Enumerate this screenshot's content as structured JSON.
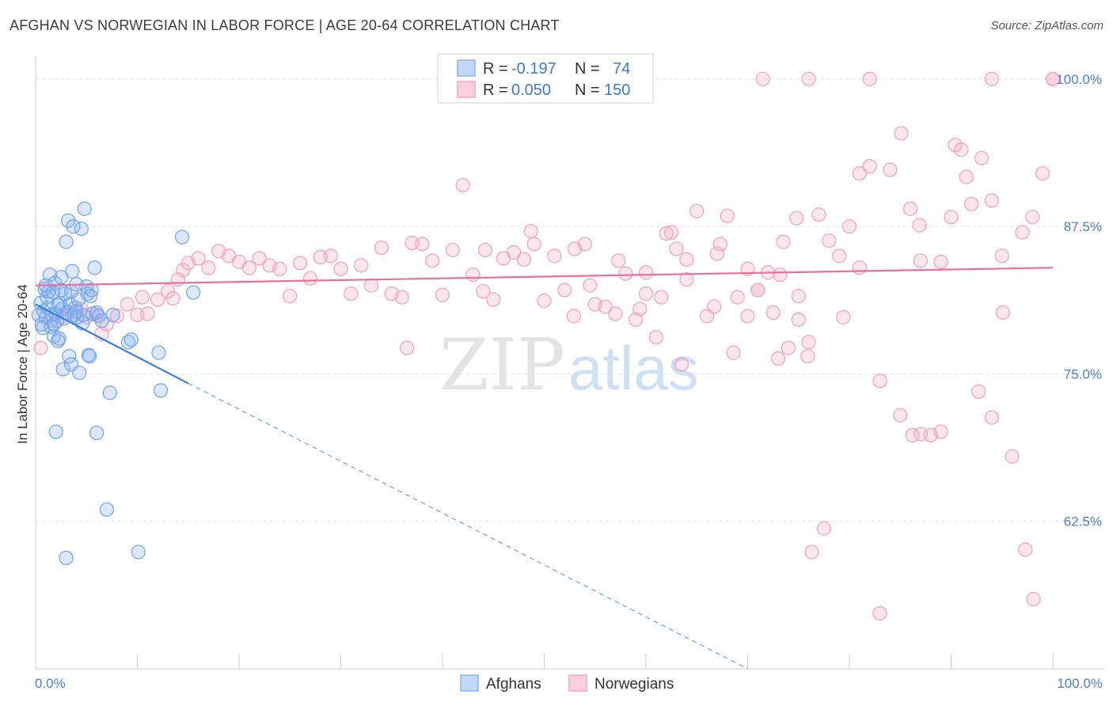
{
  "header": {
    "title": "AFGHAN VS NORWEGIAN IN LABOR FORCE | AGE 20-64 CORRELATION CHART",
    "source": "Source: ZipAtlas.com"
  },
  "watermark": {
    "zip": "ZIP",
    "atlas": "atlas"
  },
  "legend": {
    "rows": [
      {
        "r_label": "R = ",
        "r_value": "-0.197",
        "n_label": "N = ",
        "n_value": "74",
        "color": "#8ab4f0"
      },
      {
        "r_label": "R = ",
        "r_value": "0.050",
        "n_label": "N = ",
        "n_value": "150",
        "color": "#f4a6c0"
      }
    ]
  },
  "bottom_legend": [
    {
      "label": "Afghans",
      "color": "#8ab4f0"
    },
    {
      "label": "Norwegians",
      "color": "#f4a6c0"
    }
  ],
  "chart_data": {
    "type": "scatter",
    "title": "AFGHAN VS NORWEGIAN IN LABOR FORCE | AGE 20-64 CORRELATION CHART",
    "xlabel": "",
    "ylabel": "In Labor Force | Age 20-64",
    "xlim": [
      0,
      100
    ],
    "ylim": [
      50,
      102
    ],
    "x_tick_labels": [
      "0.0%",
      "100.0%"
    ],
    "y_ticks": [
      62.5,
      75.0,
      87.5,
      100.0
    ],
    "y_tick_labels": [
      "62.5%",
      "75.0%",
      "87.5%",
      "100.0%"
    ],
    "series": [
      {
        "name": "Afghans",
        "color": "#6fa3ea",
        "trend": {
          "x_start": 0,
          "y_start": 80.9,
          "x_end": 15,
          "y_end": 74.2,
          "dash_end_x": 70,
          "dash_end_y": 50
        },
        "points": [
          [
            0.3,
            80.0
          ],
          [
            0.5,
            81.0
          ],
          [
            0.6,
            79.2
          ],
          [
            0.8,
            80.3
          ],
          [
            0.9,
            82.2
          ],
          [
            1.0,
            79.8
          ],
          [
            1.1,
            81.5
          ],
          [
            1.2,
            80.6
          ],
          [
            1.3,
            82.0
          ],
          [
            1.4,
            83.4
          ],
          [
            1.5,
            79.0
          ],
          [
            1.6,
            80.0
          ],
          [
            1.7,
            81.9
          ],
          [
            1.8,
            78.2
          ],
          [
            1.9,
            82.7
          ],
          [
            2.0,
            80.1
          ],
          [
            2.1,
            79.5
          ],
          [
            2.2,
            80.8
          ],
          [
            2.3,
            78.0
          ],
          [
            2.4,
            81.0
          ],
          [
            2.5,
            82.1
          ],
          [
            2.6,
            80.5
          ],
          [
            2.7,
            75.4
          ],
          [
            2.8,
            79.7
          ],
          [
            2.9,
            81.8
          ],
          [
            3.0,
            86.2
          ],
          [
            3.1,
            80.2
          ],
          [
            3.2,
            88.0
          ],
          [
            3.3,
            76.5
          ],
          [
            3.4,
            80.9
          ],
          [
            3.5,
            75.8
          ],
          [
            3.6,
            83.7
          ],
          [
            3.7,
            87.5
          ],
          [
            3.8,
            80.0
          ],
          [
            3.9,
            80.6
          ],
          [
            4.0,
            80.3
          ],
          [
            4.1,
            79.8
          ],
          [
            4.2,
            81.3
          ],
          [
            4.3,
            75.1
          ],
          [
            4.5,
            87.3
          ],
          [
            4.6,
            79.3
          ],
          [
            4.7,
            80.0
          ],
          [
            4.8,
            89.0
          ],
          [
            5.0,
            82.4
          ],
          [
            5.1,
            81.8
          ],
          [
            5.2,
            76.6
          ],
          [
            5.3,
            76.5
          ],
          [
            5.4,
            81.6
          ],
          [
            5.5,
            82.1
          ],
          [
            5.6,
            80.1
          ],
          [
            5.8,
            84.0
          ],
          [
            6.0,
            80.2
          ],
          [
            6.2,
            79.9
          ],
          [
            6.5,
            79.5
          ],
          [
            7.0,
            63.5
          ],
          [
            7.3,
            73.4
          ],
          [
            7.6,
            80.0
          ],
          [
            9.1,
            77.7
          ],
          [
            9.4,
            77.9
          ],
          [
            10.1,
            59.9
          ],
          [
            12.1,
            76.8
          ],
          [
            12.3,
            73.6
          ],
          [
            14.4,
            86.6
          ],
          [
            15.5,
            81.9
          ],
          [
            2.0,
            70.1
          ],
          [
            6.0,
            70.0
          ],
          [
            3.0,
            59.4
          ],
          [
            1.0,
            82.5
          ],
          [
            2.5,
            83.2
          ],
          [
            1.8,
            79.2
          ],
          [
            0.7,
            78.9
          ],
          [
            3.5,
            82.0
          ],
          [
            4.0,
            82.6
          ],
          [
            2.2,
            77.8
          ]
        ]
      },
      {
        "name": "Norwegians",
        "color": "#f08cb0",
        "trend": {
          "x_start": 0,
          "y_start": 82.5,
          "x_end": 100,
          "y_end": 84.0
        },
        "points": [
          [
            0.5,
            77.2
          ],
          [
            1.5,
            79.5
          ],
          [
            2.5,
            79.8
          ],
          [
            3.5,
            80.2
          ],
          [
            4.5,
            80.5
          ],
          [
            5.0,
            79.8
          ],
          [
            6.0,
            80.0
          ],
          [
            6.5,
            78.4
          ],
          [
            7.0,
            79.2
          ],
          [
            8.0,
            79.9
          ],
          [
            9.0,
            80.9
          ],
          [
            10.0,
            80.0
          ],
          [
            10.5,
            81.5
          ],
          [
            11.0,
            80.1
          ],
          [
            12.0,
            81.3
          ],
          [
            13.0,
            82.0
          ],
          [
            13.5,
            81.4
          ],
          [
            14.0,
            83.0
          ],
          [
            14.5,
            83.8
          ],
          [
            15.0,
            84.4
          ],
          [
            16.0,
            84.8
          ],
          [
            17.0,
            84.0
          ],
          [
            18.0,
            85.4
          ],
          [
            19.0,
            85.0
          ],
          [
            20.0,
            84.5
          ],
          [
            21.0,
            84.0
          ],
          [
            22.0,
            84.8
          ],
          [
            23.0,
            84.2
          ],
          [
            24.0,
            83.9
          ],
          [
            25.0,
            81.6
          ],
          [
            26.0,
            84.4
          ],
          [
            27.0,
            83.1
          ],
          [
            28.0,
            84.9
          ],
          [
            29.0,
            85.0
          ],
          [
            30.0,
            83.9
          ],
          [
            31.0,
            81.8
          ],
          [
            32.0,
            84.2
          ],
          [
            33.0,
            82.5
          ],
          [
            34.0,
            85.7
          ],
          [
            35.0,
            81.8
          ],
          [
            36.0,
            81.5
          ],
          [
            37.0,
            86.1
          ],
          [
            38.0,
            86.0
          ],
          [
            39.0,
            84.6
          ],
          [
            40.0,
            81.7
          ],
          [
            41.0,
            85.5
          ],
          [
            42.0,
            91.0
          ],
          [
            43.0,
            83.4
          ],
          [
            44.0,
            82.0
          ],
          [
            45.0,
            81.3
          ],
          [
            46.0,
            84.8
          ],
          [
            47.0,
            85.3
          ],
          [
            48.0,
            84.7
          ],
          [
            49.0,
            86.0
          ],
          [
            50.0,
            81.2
          ],
          [
            51.0,
            85.0
          ],
          [
            52.0,
            82.1
          ],
          [
            53.0,
            85.6
          ],
          [
            54.0,
            86.0
          ],
          [
            55.0,
            80.9
          ],
          [
            56.0,
            80.7
          ],
          [
            57.0,
            80.1
          ],
          [
            58.0,
            83.5
          ],
          [
            59.0,
            79.6
          ],
          [
            60.0,
            81.8
          ],
          [
            61.0,
            78.1
          ],
          [
            62.0,
            86.9
          ],
          [
            63.0,
            85.6
          ],
          [
            64.0,
            84.7
          ],
          [
            65.0,
            88.8
          ],
          [
            66.0,
            79.9
          ],
          [
            67.0,
            85.2
          ],
          [
            68.0,
            88.4
          ],
          [
            69.0,
            81.5
          ],
          [
            70.0,
            79.9
          ],
          [
            71.0,
            82.1
          ],
          [
            72.0,
            83.6
          ],
          [
            73.0,
            76.3
          ],
          [
            74.0,
            77.2
          ],
          [
            75.0,
            81.6
          ],
          [
            76.0,
            77.7
          ],
          [
            77.0,
            88.5
          ],
          [
            78.0,
            86.3
          ],
          [
            79.0,
            85.0
          ],
          [
            80.0,
            87.5
          ],
          [
            81.0,
            92.0
          ],
          [
            82.0,
            92.6
          ],
          [
            83.0,
            74.4
          ],
          [
            84.0,
            92.3
          ],
          [
            85.0,
            71.5
          ],
          [
            86.0,
            89.0
          ],
          [
            87.0,
            84.6
          ],
          [
            88.0,
            69.8
          ],
          [
            89.0,
            84.5
          ],
          [
            90.0,
            88.3
          ],
          [
            91.0,
            94.0
          ],
          [
            92.0,
            89.4
          ],
          [
            93.0,
            93.3
          ],
          [
            94.0,
            89.7
          ],
          [
            95.0,
            85.0
          ],
          [
            96.0,
            68.0
          ],
          [
            97.0,
            87.0
          ],
          [
            98.0,
            88.3
          ],
          [
            99.0,
            92.0
          ],
          [
            100.0,
            100.0
          ],
          [
            71.5,
            100.0
          ],
          [
            76.0,
            100.0
          ],
          [
            82.0,
            100.0
          ],
          [
            94.0,
            100.0
          ],
          [
            100.0,
            100.0
          ],
          [
            76.3,
            59.9
          ],
          [
            77.5,
            61.9
          ],
          [
            83.0,
            54.7
          ],
          [
            86.2,
            69.8
          ],
          [
            87.0,
            69.9
          ],
          [
            92.7,
            73.5
          ],
          [
            94.0,
            71.3
          ],
          [
            97.3,
            60.1
          ],
          [
            89.0,
            70.1
          ],
          [
            91.5,
            91.7
          ],
          [
            85.1,
            95.4
          ],
          [
            75.0,
            79.6
          ],
          [
            60.0,
            83.6
          ],
          [
            62.5,
            87.0
          ],
          [
            66.7,
            80.7
          ],
          [
            68.6,
            76.8
          ],
          [
            70.0,
            83.9
          ],
          [
            71.0,
            82.1
          ],
          [
            72.5,
            80.2
          ],
          [
            73.2,
            83.4
          ],
          [
            74.8,
            88.2
          ],
          [
            73.5,
            86.2
          ],
          [
            36.5,
            77.2
          ],
          [
            44.2,
            85.5
          ],
          [
            48.7,
            87.1
          ],
          [
            52.9,
            79.9
          ],
          [
            54.5,
            82.5
          ],
          [
            57.3,
            84.6
          ],
          [
            59.4,
            80.5
          ],
          [
            61.5,
            81.5
          ],
          [
            64.0,
            83.0
          ],
          [
            67.3,
            86.0
          ],
          [
            79.4,
            79.8
          ],
          [
            81.0,
            84.0
          ],
          [
            86.9,
            87.6
          ],
          [
            90.4,
            94.4
          ],
          [
            95.1,
            80.2
          ],
          [
            98.1,
            55.9
          ],
          [
            63.5,
            75.8
          ],
          [
            75.9,
            76.5
          ]
        ]
      }
    ]
  }
}
